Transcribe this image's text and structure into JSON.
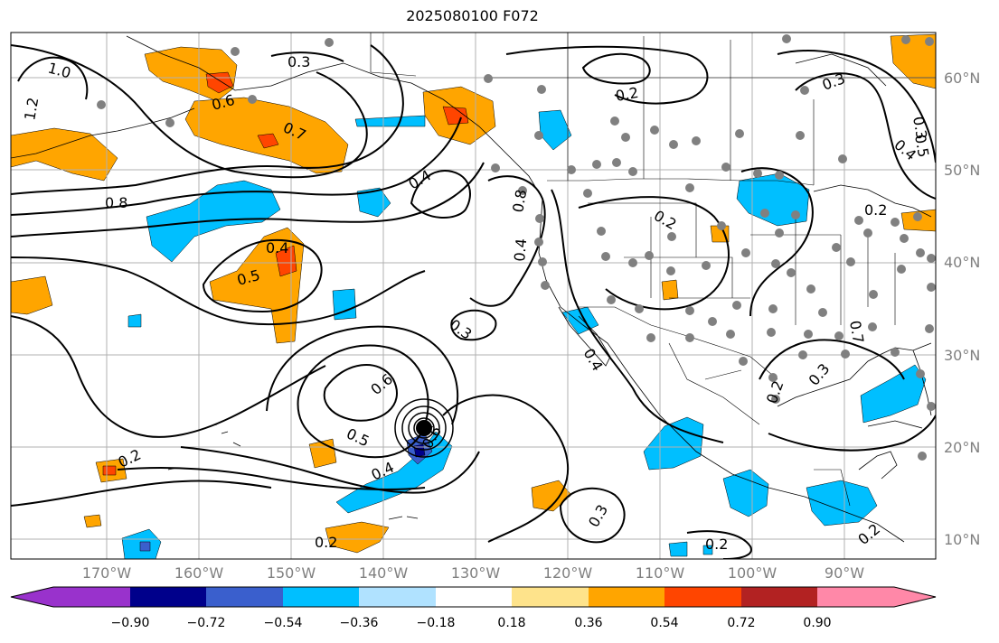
{
  "title": "2025080100 F072",
  "latitude_labels": [
    "60°N",
    "50°N",
    "40°N",
    "30°N",
    "20°N",
    "10°N"
  ],
  "longitude_labels": [
    "170°W",
    "160°W",
    "150°W",
    "140°W",
    "130°W",
    "120°W",
    "110°W",
    "100°W",
    "90°W"
  ],
  "colorbar": {
    "colors": [
      "#9932cc",
      "#00008b",
      "#3a5fcd",
      "#00bfff",
      "#b0e2ff",
      "#ffffff",
      "#fee38b",
      "#ffa500",
      "#ff4500",
      "#b22222",
      "#ff88a8"
    ],
    "tick_labels": [
      "−0.90",
      "−0.72",
      "−0.54",
      "−0.36",
      "−0.18",
      "0.18",
      "0.36",
      "0.54",
      "0.72",
      "0.90"
    ]
  },
  "contour_labels": [
    "1.0",
    "1.2",
    "0.3",
    "0.6",
    "0.7",
    "0.8",
    "0.4",
    "0.5",
    "0.4",
    "0.2",
    "0.3",
    "0.4",
    "0.2",
    "0.3",
    "0.5",
    "0.4",
    "0.2",
    "0.8",
    "0.4",
    "0.3",
    "0.6",
    "0.5",
    "0.6",
    "0.4",
    "0.2",
    "0.3",
    "0.2",
    "0.2",
    "0.3",
    "0.2",
    "0.7",
    "0.2"
  ],
  "storm_marker": "tropical cyclone center",
  "colors": {
    "station_dots": "#808080",
    "contours": "#000000",
    "gridlines": "#b0b0b0",
    "map_frame": "#000000"
  }
}
